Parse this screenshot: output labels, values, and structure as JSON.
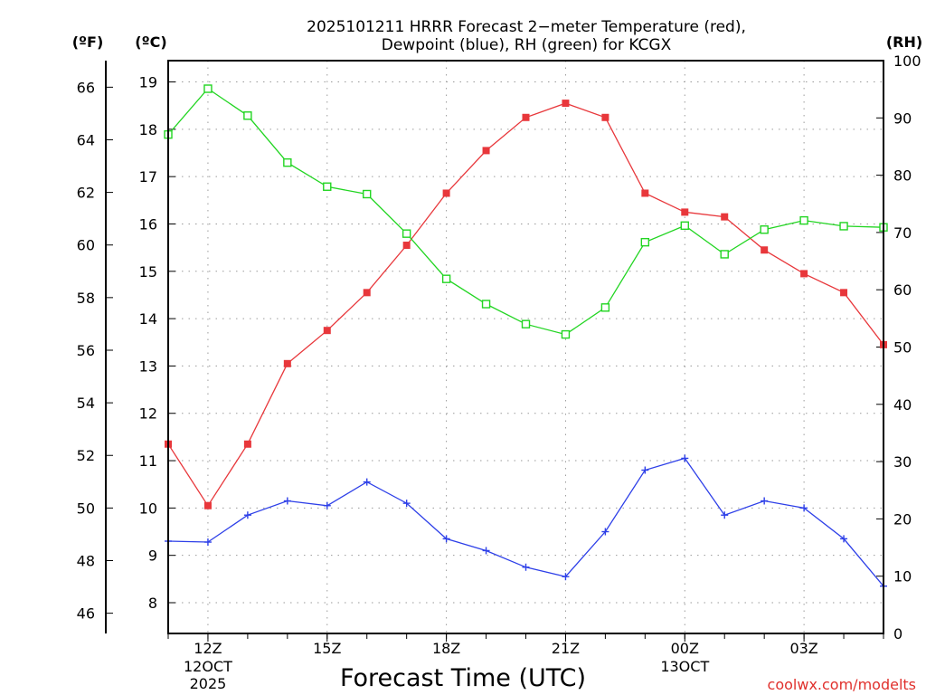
{
  "chart_data": {
    "type": "line",
    "title_line1": "2025101211 HRRR Forecast 2−meter Temperature (red),",
    "title_line2": "Dewpoint (blue), RH (green) for KCGX",
    "xlabel": "Forecast Time (UTC)",
    "credit": "coolwx.com/modelts",
    "axes": {
      "fahrenheit": {
        "label": "(ºF)",
        "ticks": [
          "46",
          "48",
          "50",
          "52",
          "54",
          "56",
          "58",
          "60",
          "62",
          "64",
          "66"
        ]
      },
      "celsius": {
        "label": "(ºC)",
        "range": [
          7.35,
          19.45
        ],
        "ticks": [
          "8",
          "9",
          "10",
          "11",
          "12",
          "13",
          "14",
          "15",
          "16",
          "17",
          "18",
          "19"
        ]
      },
      "rh": {
        "label": "(RH)",
        "range": [
          0,
          100
        ],
        "ticks": [
          "0",
          "10",
          "20",
          "30",
          "40",
          "50",
          "60",
          "70",
          "80",
          "90",
          "100"
        ]
      }
    },
    "x": {
      "hours": [
        11,
        12,
        13,
        14,
        15,
        16,
        17,
        18,
        19,
        20,
        21,
        22,
        23,
        0,
        1,
        2,
        3,
        4,
        5
      ],
      "range": [
        0,
        18
      ]
    },
    "x_ticks": [
      {
        "index": 1,
        "label": "12Z",
        "sub1": "12OCT",
        "sub2": "2025"
      },
      {
        "index": 4,
        "label": "15Z",
        "sub1": "",
        "sub2": ""
      },
      {
        "index": 7,
        "label": "18Z",
        "sub1": "",
        "sub2": ""
      },
      {
        "index": 10,
        "label": "21Z",
        "sub1": "",
        "sub2": ""
      },
      {
        "index": 13,
        "label": "00Z",
        "sub1": "13OCT",
        "sub2": ""
      },
      {
        "index": 16,
        "label": "03Z",
        "sub1": "",
        "sub2": ""
      }
    ],
    "series": [
      {
        "name": "Temperature",
        "axis": "celsius",
        "color": "#e8373b",
        "marker": "filled-square",
        "values": [
          11.35,
          10.05,
          11.35,
          13.05,
          13.75,
          14.55,
          15.55,
          16.65,
          17.55,
          18.25,
          18.55,
          18.25,
          16.65,
          16.25,
          16.15,
          15.45,
          14.95,
          14.55,
          13.45
        ]
      },
      {
        "name": "Dewpoint",
        "axis": "celsius",
        "color": "#2d3fe8",
        "marker": "plus",
        "values": [
          9.3,
          9.28,
          9.85,
          10.15,
          10.05,
          10.55,
          10.1,
          9.35,
          9.1,
          8.75,
          8.55,
          9.5,
          10.8,
          11.05,
          9.85,
          10.15,
          10.0,
          9.35,
          8.35
        ]
      },
      {
        "name": "RH",
        "axis": "rh",
        "color": "#22d522",
        "marker": "open-square",
        "values": [
          87.1,
          95.1,
          90.4,
          82.2,
          78.0,
          76.7,
          69.8,
          61.9,
          57.5,
          54.0,
          52.2,
          56.9,
          68.3,
          71.2,
          66.2,
          70.5,
          72.1,
          71.1,
          70.9
        ]
      }
    ],
    "grid": true
  }
}
